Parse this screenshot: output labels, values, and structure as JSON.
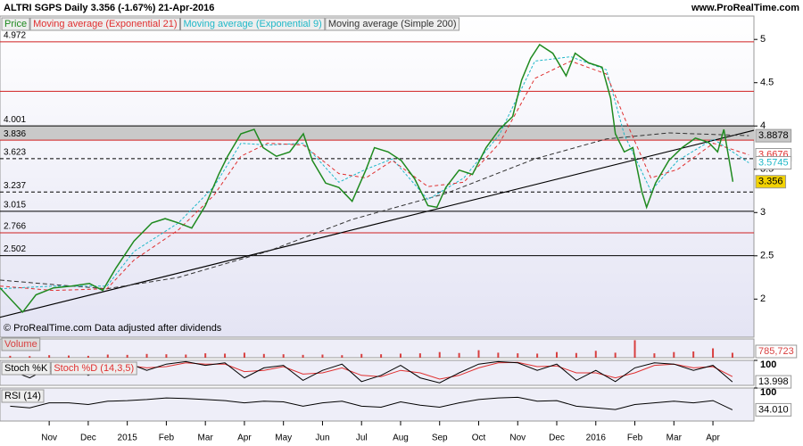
{
  "header": {
    "title": "ALTRI SGPS   Daily   3.356 (-1.67%)   21-Apr-2016",
    "site": "www.ProRealTime.com",
    "note": "© ProRealTime.com  Data adjusted after dividends",
    "tab": "Price"
  },
  "chart_data": [
    {
      "type": "line",
      "xlim": [
        -1.26,
        18.05
      ],
      "ylim": [
        1.56,
        5.27
      ],
      "yticks": [
        2,
        2.5,
        3,
        3.5,
        4,
        4.5,
        5
      ],
      "xticks": [
        {
          "value": 0,
          "label": "Nov"
        },
        {
          "value": 1,
          "label": "Dec"
        },
        {
          "value": 2,
          "label": "2015"
        },
        {
          "value": 3,
          "label": "Feb"
        },
        {
          "value": 4,
          "label": "Mar"
        },
        {
          "value": 5,
          "label": "Apr"
        },
        {
          "value": 6,
          "label": "May"
        },
        {
          "value": 7,
          "label": "Jun"
        },
        {
          "value": 8,
          "label": "Jul"
        },
        {
          "value": 9,
          "label": "Aug"
        },
        {
          "value": 10,
          "label": "Sep"
        },
        {
          "value": 11,
          "label": "Oct"
        },
        {
          "value": 12,
          "label": "Nov"
        },
        {
          "value": 13,
          "label": "Dec"
        },
        {
          "value": 14,
          "label": "2016"
        },
        {
          "value": 15,
          "label": "Feb"
        },
        {
          "value": 16,
          "label": "Mar"
        },
        {
          "value": 17,
          "label": "Apr"
        }
      ],
      "series": [
        {
          "name": "Price",
          "color": "#1f8a1f",
          "dash": "none",
          "label_bg": "#f2d200",
          "label_fg": "#000000",
          "x": [
            -1.26,
            -0.68,
            -0.34,
            0.11,
            0.57,
            1.03,
            1.37,
            1.71,
            2.17,
            2.63,
            2.97,
            3.31,
            3.65,
            4.0,
            4.34,
            4.57,
            4.91,
            5.25,
            5.48,
            5.82,
            6.16,
            6.51,
            6.74,
            7.08,
            7.42,
            7.76,
            8.11,
            8.33,
            8.68,
            9.02,
            9.36,
            9.7,
            9.93,
            10.16,
            10.5,
            10.84,
            11.19,
            11.53,
            11.87,
            12.1,
            12.33,
            12.56,
            12.9,
            13.24,
            13.47,
            13.81,
            14.16,
            14.38,
            14.5,
            14.73,
            14.95,
            15.18,
            15.3,
            15.53,
            15.87,
            16.21,
            16.55,
            16.89,
            17.12,
            17.28,
            17.46,
            17.51
          ],
          "values": [
            2.13,
            1.85,
            2.05,
            2.13,
            2.15,
            2.18,
            2.1,
            2.36,
            2.67,
            2.88,
            2.93,
            2.88,
            2.82,
            3.08,
            3.44,
            3.65,
            3.91,
            3.96,
            3.75,
            3.65,
            3.7,
            3.91,
            3.6,
            3.34,
            3.29,
            3.13,
            3.49,
            3.75,
            3.7,
            3.6,
            3.39,
            3.08,
            3.06,
            3.29,
            3.49,
            3.44,
            3.75,
            3.96,
            4.11,
            4.53,
            4.78,
            4.94,
            4.84,
            4.58,
            4.84,
            4.73,
            4.68,
            4.32,
            3.91,
            3.7,
            3.75,
            3.24,
            3.06,
            3.34,
            3.6,
            3.75,
            3.86,
            3.81,
            3.7,
            3.96,
            3.49,
            3.356
          ]
        },
        {
          "name": "Moving average (Exponential 21)",
          "color": "#e03030",
          "dash": "4 3",
          "label_bg": "#ffffff",
          "label_fg": "#e03030",
          "x": [
            -1.26,
            0.11,
            1.48,
            2.17,
            3.31,
            4.22,
            4.91,
            5.59,
            6.51,
            7.42,
            8.11,
            8.79,
            9.7,
            10.62,
            11.53,
            12.44,
            13.36,
            14.27,
            14.73,
            15.41,
            16.1,
            17.01,
            17.92
          ],
          "values": [
            2.15,
            2.1,
            2.12,
            2.45,
            2.8,
            3.2,
            3.65,
            3.8,
            3.78,
            3.45,
            3.4,
            3.6,
            3.3,
            3.35,
            3.8,
            4.55,
            4.75,
            4.6,
            4.1,
            3.4,
            3.5,
            3.8,
            3.6676
          ]
        },
        {
          "name": "Moving average (Exponential 9)",
          "color": "#20b8c8",
          "dash": "3 2",
          "label_bg": "#ffffff",
          "label_fg": "#20b8c8",
          "x": [
            -1.26,
            0.11,
            1.48,
            2.17,
            3.31,
            4.22,
            4.91,
            5.59,
            6.51,
            7.42,
            8.11,
            8.79,
            9.7,
            10.62,
            11.53,
            12.44,
            13.36,
            14.27,
            14.73,
            15.41,
            16.1,
            17.01,
            17.92
          ],
          "values": [
            2.12,
            2.15,
            2.15,
            2.55,
            2.88,
            3.3,
            3.8,
            3.78,
            3.8,
            3.35,
            3.5,
            3.62,
            3.15,
            3.4,
            3.9,
            4.75,
            4.8,
            4.65,
            3.9,
            3.25,
            3.6,
            3.85,
            3.5745
          ]
        },
        {
          "name": "Moving average (Simple 200)",
          "color": "#333333",
          "dash": "5 3",
          "label_bg": "#c8c8c8",
          "label_fg": "#000000",
          "x": [
            -1.26,
            0.57,
            1.48,
            3.31,
            5.59,
            7.76,
            10.16,
            12.44,
            14.27,
            15.87,
            17.92
          ],
          "values": [
            2.22,
            2.15,
            2.12,
            2.25,
            2.55,
            2.92,
            3.22,
            3.62,
            3.85,
            3.92,
            3.8878
          ]
        }
      ],
      "trendline": {
        "x": [
          -1.26,
          18.05
        ],
        "values": [
          1.79,
          3.95
        ],
        "color": "#000000"
      },
      "band": {
        "from": 3.836,
        "to": 4.001,
        "color": "#c9c9c9"
      },
      "levels": [
        {
          "value": 4.972,
          "color": "#d02020",
          "dash": "none"
        },
        {
          "value": 4.001,
          "color": "#000000",
          "dash": "none"
        },
        {
          "value": 3.836,
          "color": "#d02020",
          "dash": "none"
        },
        {
          "value": 3.623,
          "color": "#000000",
          "dash": "4 3"
        },
        {
          "value": 3.237,
          "color": "#000000",
          "dash": "4 3"
        },
        {
          "value": 3.015,
          "color": "#000000",
          "dash": "none"
        },
        {
          "value": 2.766,
          "color": "#d02020",
          "dash": "none"
        },
        {
          "value": 2.502,
          "color": "#000000",
          "dash": "none"
        }
      ],
      "hlines": [
        {
          "value": 4.4,
          "color": "#d02020"
        }
      ]
    },
    {
      "type": "bar",
      "title": "Volume",
      "xlim": [
        -1.26,
        18.05
      ],
      "ylim": [
        0,
        3000000
      ],
      "color": "#d84040",
      "x": [
        -1,
        -0.5,
        0,
        0.5,
        1,
        1.5,
        2,
        2.5,
        3,
        3.5,
        4,
        4.5,
        5,
        5.5,
        6,
        6.5,
        7,
        7.5,
        8,
        8.5,
        9,
        9.5,
        10,
        10.5,
        11,
        11.5,
        12,
        12.5,
        13,
        13.5,
        14,
        14.5,
        15,
        15.5,
        16,
        16.5,
        17,
        17.5
      ],
      "values": [
        300000,
        250000,
        400000,
        350000,
        300000,
        500000,
        450000,
        600000,
        550000,
        500000,
        700000,
        650000,
        800000,
        600000,
        550000,
        450000,
        500000,
        400000,
        600000,
        550000,
        650000,
        700000,
        900000,
        750000,
        1200000,
        800000,
        700000,
        650000,
        900000,
        750000,
        1100000,
        800000,
        2800000,
        700000,
        900000,
        1000000,
        1500000,
        785723
      ],
      "last_label": "785,723"
    },
    {
      "type": "line",
      "xlim": [
        -1.26,
        18.05
      ],
      "ylim": [
        0,
        100
      ],
      "yticks": [
        100
      ],
      "x": [
        -1,
        -0.5,
        0,
        0.5,
        1,
        1.5,
        2,
        2.5,
        3,
        3.5,
        4,
        4.5,
        5,
        5.5,
        6,
        6.5,
        7,
        7.5,
        8,
        8.5,
        9,
        9.5,
        10,
        10.5,
        11,
        11.5,
        12,
        12.5,
        13,
        13.5,
        14,
        14.5,
        15,
        15.5,
        16,
        16.5,
        17,
        17.5
      ],
      "series": [
        {
          "name": "Stoch %K",
          "color": "#000000",
          "values": [
            60,
            30,
            70,
            85,
            40,
            75,
            90,
            60,
            85,
            95,
            80,
            90,
            30,
            70,
            80,
            20,
            60,
            85,
            15,
            40,
            80,
            30,
            10,
            50,
            85,
            95,
            90,
            60,
            85,
            20,
            60,
            15,
            70,
            90,
            85,
            60,
            80,
            13.998
          ]
        },
        {
          "name": "Stoch %D (14,3,5)",
          "color": "#e03030",
          "values": [
            55,
            45,
            55,
            70,
            60,
            65,
            80,
            70,
            75,
            90,
            85,
            85,
            55,
            60,
            75,
            45,
            50,
            70,
            40,
            35,
            60,
            50,
            25,
            40,
            70,
            90,
            92,
            75,
            78,
            50,
            50,
            30,
            50,
            80,
            85,
            70,
            75,
            35
          ]
        }
      ]
    },
    {
      "type": "line",
      "xlim": [
        -1.26,
        18.05
      ],
      "ylim": [
        0,
        100
      ],
      "yticks": [
        100
      ],
      "x": [
        -1,
        -0.5,
        0,
        0.5,
        1,
        1.5,
        2,
        2.5,
        3,
        3.5,
        4,
        4.5,
        5,
        5.5,
        6,
        6.5,
        7,
        7.5,
        8,
        8.5,
        9,
        9.5,
        10,
        10.5,
        11,
        11.5,
        12,
        12.5,
        13,
        13.5,
        14,
        14.5,
        15,
        15.5,
        16,
        16.5,
        17,
        17.5
      ],
      "series": [
        {
          "name": "RSI (14)",
          "color": "#000000",
          "values": [
            45,
            40,
            55,
            55,
            50,
            60,
            62,
            65,
            70,
            68,
            65,
            62,
            55,
            60,
            58,
            45,
            55,
            60,
            45,
            42,
            58,
            48,
            42,
            55,
            65,
            70,
            72,
            60,
            62,
            45,
            40,
            35,
            50,
            55,
            60,
            55,
            62,
            34.01
          ]
        }
      ],
      "last_label": "34.010"
    }
  ]
}
